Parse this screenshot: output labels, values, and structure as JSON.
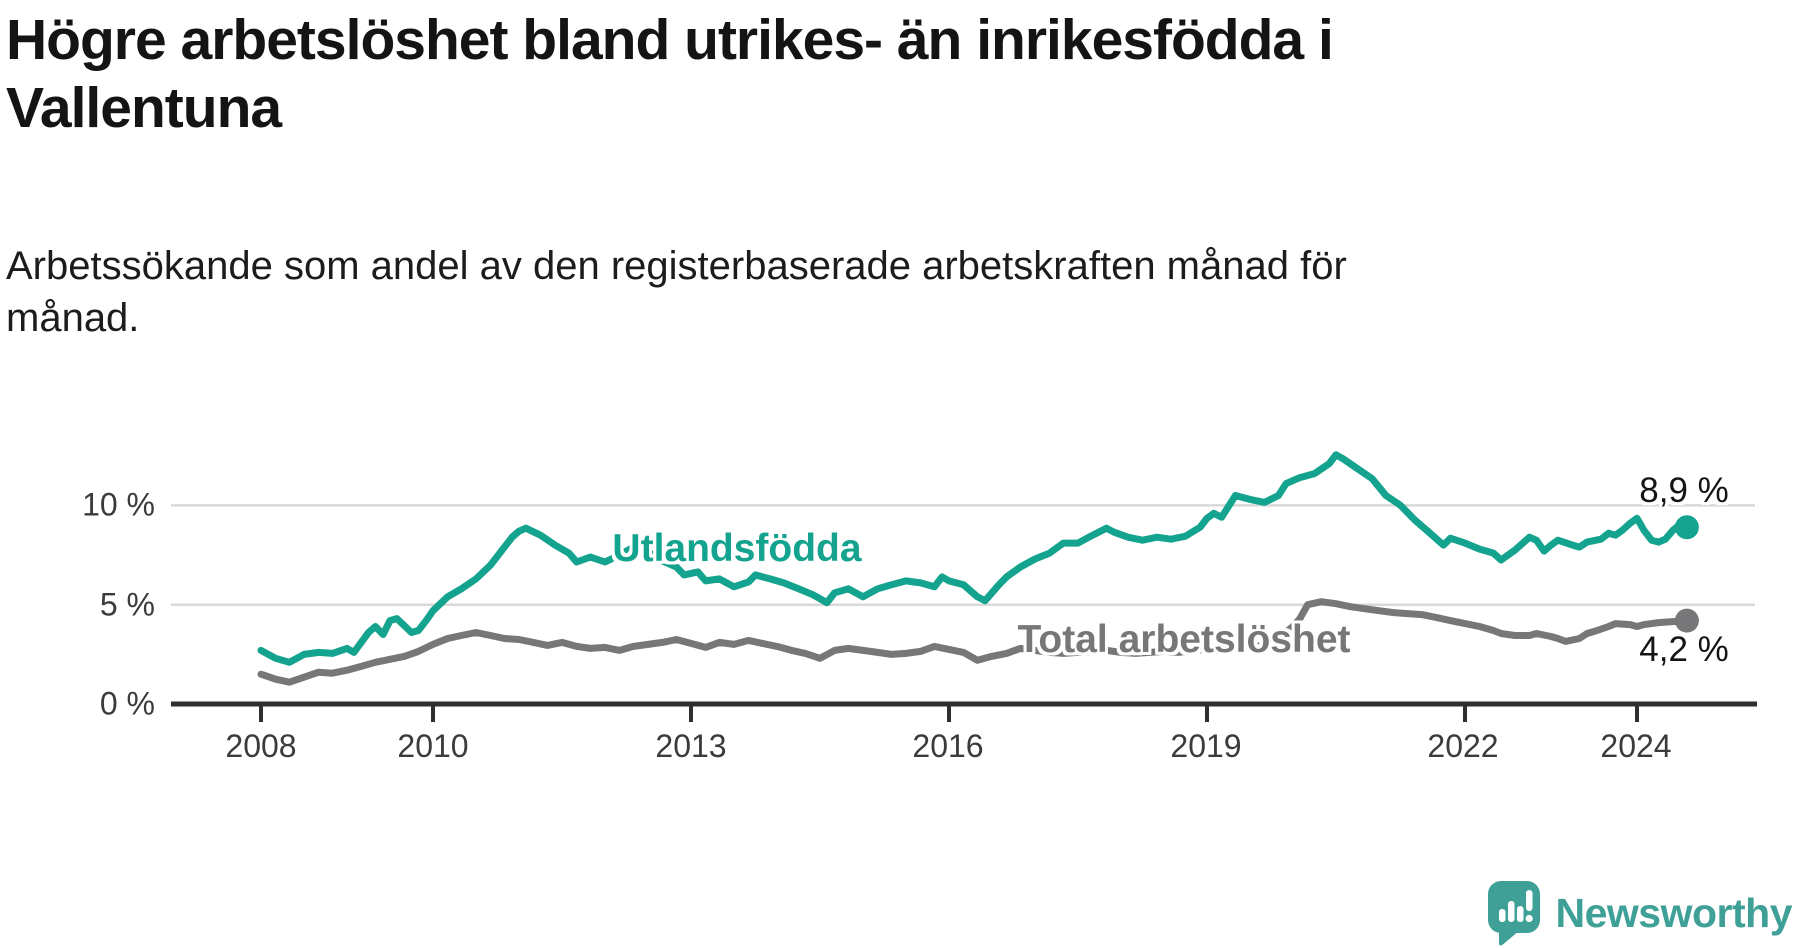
{
  "title": {
    "line1": "Högre arbetslöshet bland utrikes- än inrikesfödda i",
    "line2": "Vallentuna"
  },
  "subtitle": {
    "line1": "Arbetssökande som andel av den registerbaserade arbetskraften månad för",
    "line2": "månad."
  },
  "colors": {
    "foreign_born_line": "#14a38e",
    "total_line": "#77777a",
    "gridline": "#d9d9d9",
    "axis": "#2f2f2f",
    "tick_text": "#3b3b3b",
    "value_text": "#141414",
    "logo_teal": "#3fa097"
  },
  "chart_data": {
    "type": "line",
    "title": "Högre arbetslöshet bland utrikes- än inrikesfödda i Vallentuna",
    "subtitle": "Arbetssökande som andel av den registerbaserade arbetskraften månad för månad.",
    "xlabel": "",
    "ylabel": "",
    "unit": "%",
    "grid": "horizontal",
    "ylim": [
      0,
      13
    ],
    "xlim": [
      2007.6,
      2025.4
    ],
    "ytick_labels": [
      "0 %",
      "5 %",
      "10 %"
    ],
    "ytick_values": [
      0,
      5,
      10
    ],
    "grid_values": [
      5,
      10
    ],
    "xtick_labels": [
      "2008",
      "2010",
      "2013",
      "2016",
      "2019",
      "2022",
      "2024"
    ],
    "xtick_values": [
      2008,
      2010,
      2013,
      2016,
      2019,
      2022,
      2024
    ],
    "series": [
      {
        "name": "Utlandsfödda",
        "color": "#14a38e",
        "end_label": "8,9 %",
        "end_value": 8.9,
        "points": [
          [
            2008.0,
            2.7
          ],
          [
            2008.17,
            2.3
          ],
          [
            2008.33,
            2.1
          ],
          [
            2008.5,
            2.5
          ],
          [
            2008.67,
            2.6
          ],
          [
            2008.83,
            2.55
          ],
          [
            2009.0,
            2.8
          ],
          [
            2009.08,
            2.6
          ],
          [
            2009.25,
            3.6
          ],
          [
            2009.33,
            3.9
          ],
          [
            2009.42,
            3.5
          ],
          [
            2009.5,
            4.2
          ],
          [
            2009.58,
            4.3
          ],
          [
            2009.75,
            3.6
          ],
          [
            2009.83,
            3.7
          ],
          [
            2009.92,
            4.2
          ],
          [
            2010.0,
            4.7
          ],
          [
            2010.17,
            5.4
          ],
          [
            2010.33,
            5.8
          ],
          [
            2010.5,
            6.3
          ],
          [
            2010.67,
            7.0
          ],
          [
            2010.83,
            7.9
          ],
          [
            2010.92,
            8.4
          ],
          [
            2011.0,
            8.7
          ],
          [
            2011.08,
            8.85
          ],
          [
            2011.25,
            8.5
          ],
          [
            2011.42,
            8.0
          ],
          [
            2011.58,
            7.6
          ],
          [
            2011.67,
            7.15
          ],
          [
            2011.83,
            7.4
          ],
          [
            2012.0,
            7.15
          ],
          [
            2012.17,
            7.5
          ],
          [
            2012.33,
            7.9
          ],
          [
            2012.5,
            7.65
          ],
          [
            2012.67,
            7.2
          ],
          [
            2012.83,
            6.9
          ],
          [
            2012.92,
            6.5
          ],
          [
            2013.08,
            6.65
          ],
          [
            2013.17,
            6.2
          ],
          [
            2013.33,
            6.3
          ],
          [
            2013.5,
            5.9
          ],
          [
            2013.67,
            6.15
          ],
          [
            2013.75,
            6.5
          ],
          [
            2013.83,
            6.4
          ],
          [
            2013.92,
            6.3
          ],
          [
            2014.08,
            6.1
          ],
          [
            2014.25,
            5.8
          ],
          [
            2014.42,
            5.5
          ],
          [
            2014.58,
            5.1
          ],
          [
            2014.67,
            5.6
          ],
          [
            2014.83,
            5.8
          ],
          [
            2015.0,
            5.4
          ],
          [
            2015.17,
            5.8
          ],
          [
            2015.33,
            6.0
          ],
          [
            2015.5,
            6.2
          ],
          [
            2015.67,
            6.1
          ],
          [
            2015.83,
            5.9
          ],
          [
            2015.92,
            6.4
          ],
          [
            2016.0,
            6.2
          ],
          [
            2016.17,
            6.0
          ],
          [
            2016.33,
            5.4
          ],
          [
            2016.42,
            5.2
          ],
          [
            2016.58,
            6.0
          ],
          [
            2016.67,
            6.4
          ],
          [
            2016.83,
            6.9
          ],
          [
            2017.0,
            7.3
          ],
          [
            2017.17,
            7.6
          ],
          [
            2017.33,
            8.1
          ],
          [
            2017.5,
            8.1
          ],
          [
            2017.67,
            8.5
          ],
          [
            2017.83,
            8.85
          ],
          [
            2017.92,
            8.65
          ],
          [
            2018.08,
            8.4
          ],
          [
            2018.25,
            8.25
          ],
          [
            2018.42,
            8.4
          ],
          [
            2018.58,
            8.3
          ],
          [
            2018.75,
            8.45
          ],
          [
            2018.92,
            8.9
          ],
          [
            2019.0,
            9.35
          ],
          [
            2019.08,
            9.6
          ],
          [
            2019.17,
            9.4
          ],
          [
            2019.33,
            10.5
          ],
          [
            2019.5,
            10.3
          ],
          [
            2019.67,
            10.15
          ],
          [
            2019.83,
            10.5
          ],
          [
            2019.92,
            11.1
          ],
          [
            2020.08,
            11.4
          ],
          [
            2020.25,
            11.6
          ],
          [
            2020.42,
            12.1
          ],
          [
            2020.5,
            12.55
          ],
          [
            2020.58,
            12.35
          ],
          [
            2020.75,
            11.85
          ],
          [
            2020.92,
            11.35
          ],
          [
            2021.08,
            10.5
          ],
          [
            2021.25,
            10.0
          ],
          [
            2021.42,
            9.25
          ],
          [
            2021.58,
            8.65
          ],
          [
            2021.75,
            8.0
          ],
          [
            2021.83,
            8.35
          ],
          [
            2022.0,
            8.1
          ],
          [
            2022.17,
            7.8
          ],
          [
            2022.33,
            7.6
          ],
          [
            2022.42,
            7.25
          ],
          [
            2022.58,
            7.75
          ],
          [
            2022.75,
            8.4
          ],
          [
            2022.83,
            8.25
          ],
          [
            2022.92,
            7.7
          ],
          [
            2023.0,
            8.0
          ],
          [
            2023.08,
            8.25
          ],
          [
            2023.25,
            8.0
          ],
          [
            2023.33,
            7.9
          ],
          [
            2023.42,
            8.15
          ],
          [
            2023.58,
            8.3
          ],
          [
            2023.67,
            8.6
          ],
          [
            2023.75,
            8.5
          ],
          [
            2023.83,
            8.75
          ],
          [
            2023.92,
            9.1
          ],
          [
            2024.0,
            9.35
          ],
          [
            2024.08,
            8.75
          ],
          [
            2024.17,
            8.25
          ],
          [
            2024.25,
            8.15
          ],
          [
            2024.33,
            8.3
          ],
          [
            2024.42,
            8.75
          ],
          [
            2024.5,
            9.05
          ],
          [
            2024.58,
            8.9
          ]
        ]
      },
      {
        "name": "Total arbetslöshet",
        "color": "#77777a",
        "end_label": "4,2 %",
        "end_value": 4.2,
        "points": [
          [
            2008.0,
            1.5
          ],
          [
            2008.17,
            1.25
          ],
          [
            2008.33,
            1.1
          ],
          [
            2008.5,
            1.35
          ],
          [
            2008.67,
            1.6
          ],
          [
            2008.83,
            1.55
          ],
          [
            2009.0,
            1.7
          ],
          [
            2009.17,
            1.9
          ],
          [
            2009.33,
            2.1
          ],
          [
            2009.5,
            2.25
          ],
          [
            2009.67,
            2.4
          ],
          [
            2009.83,
            2.65
          ],
          [
            2010.0,
            3.0
          ],
          [
            2010.17,
            3.3
          ],
          [
            2010.33,
            3.45
          ],
          [
            2010.5,
            3.6
          ],
          [
            2010.67,
            3.45
          ],
          [
            2010.83,
            3.3
          ],
          [
            2011.0,
            3.25
          ],
          [
            2011.17,
            3.1
          ],
          [
            2011.33,
            2.95
          ],
          [
            2011.5,
            3.1
          ],
          [
            2011.67,
            2.9
          ],
          [
            2011.83,
            2.8
          ],
          [
            2012.0,
            2.85
          ],
          [
            2012.17,
            2.7
          ],
          [
            2012.33,
            2.9
          ],
          [
            2012.5,
            3.0
          ],
          [
            2012.67,
            3.1
          ],
          [
            2012.83,
            3.25
          ],
          [
            2013.0,
            3.05
          ],
          [
            2013.17,
            2.85
          ],
          [
            2013.33,
            3.1
          ],
          [
            2013.5,
            3.0
          ],
          [
            2013.67,
            3.2
          ],
          [
            2013.83,
            3.05
          ],
          [
            2014.0,
            2.9
          ],
          [
            2014.17,
            2.7
          ],
          [
            2014.33,
            2.55
          ],
          [
            2014.5,
            2.3
          ],
          [
            2014.67,
            2.7
          ],
          [
            2014.83,
            2.8
          ],
          [
            2015.0,
            2.7
          ],
          [
            2015.17,
            2.6
          ],
          [
            2015.33,
            2.5
          ],
          [
            2015.5,
            2.55
          ],
          [
            2015.67,
            2.65
          ],
          [
            2015.83,
            2.9
          ],
          [
            2016.0,
            2.75
          ],
          [
            2016.17,
            2.6
          ],
          [
            2016.33,
            2.2
          ],
          [
            2016.5,
            2.4
          ],
          [
            2016.67,
            2.55
          ],
          [
            2016.83,
            2.8
          ],
          [
            2017.0,
            2.7
          ],
          [
            2017.17,
            2.6
          ],
          [
            2017.33,
            2.55
          ],
          [
            2017.5,
            2.6
          ],
          [
            2017.67,
            2.65
          ],
          [
            2017.83,
            2.7
          ],
          [
            2018.0,
            2.6
          ],
          [
            2018.17,
            2.55
          ],
          [
            2018.33,
            2.6
          ],
          [
            2018.5,
            2.65
          ],
          [
            2018.67,
            2.6
          ],
          [
            2018.83,
            2.7
          ],
          [
            2019.0,
            2.75
          ],
          [
            2019.17,
            2.7
          ],
          [
            2019.33,
            2.8
          ],
          [
            2019.5,
            2.85
          ],
          [
            2019.67,
            2.95
          ],
          [
            2019.83,
            3.3
          ],
          [
            2020.0,
            3.9
          ],
          [
            2020.08,
            4.3
          ],
          [
            2020.17,
            5.0
          ],
          [
            2020.33,
            5.15
          ],
          [
            2020.5,
            5.05
          ],
          [
            2020.67,
            4.9
          ],
          [
            2020.83,
            4.8
          ],
          [
            2021.0,
            4.7
          ],
          [
            2021.17,
            4.6
          ],
          [
            2021.33,
            4.55
          ],
          [
            2021.5,
            4.5
          ],
          [
            2021.67,
            4.35
          ],
          [
            2021.83,
            4.2
          ],
          [
            2022.0,
            4.05
          ],
          [
            2022.17,
            3.9
          ],
          [
            2022.33,
            3.7
          ],
          [
            2022.42,
            3.55
          ],
          [
            2022.58,
            3.45
          ],
          [
            2022.75,
            3.45
          ],
          [
            2022.83,
            3.55
          ],
          [
            2023.0,
            3.4
          ],
          [
            2023.08,
            3.3
          ],
          [
            2023.17,
            3.15
          ],
          [
            2023.33,
            3.3
          ],
          [
            2023.42,
            3.55
          ],
          [
            2023.5,
            3.65
          ],
          [
            2023.67,
            3.9
          ],
          [
            2023.75,
            4.05
          ],
          [
            2023.92,
            4.0
          ],
          [
            2024.0,
            3.9
          ],
          [
            2024.08,
            4.0
          ],
          [
            2024.25,
            4.1
          ],
          [
            2024.42,
            4.15
          ],
          [
            2024.58,
            4.2
          ]
        ]
      }
    ],
    "legend_position": "inline-annotations"
  },
  "annotations": {
    "foreign_born_label": "Utlandsfödda",
    "total_label": "Total arbetslöshet",
    "foreign_born_end_value": "8,9 %",
    "total_end_value": "4,2 %"
  },
  "branding": {
    "wordmark": "Newsworthy",
    "icon": "newsworthy-speech-bubble-bar-chart-icon"
  }
}
